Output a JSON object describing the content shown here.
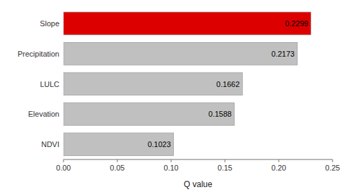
{
  "chart_data": {
    "type": "bar",
    "orientation": "horizontal",
    "categories": [
      "NDVI",
      "Elevation",
      "LULC",
      "Precipitation",
      "Slope"
    ],
    "values": [
      0.1023,
      0.1588,
      0.1662,
      0.2173,
      0.2299
    ],
    "colors": [
      "#c0c0c0",
      "#c0c0c0",
      "#c0c0c0",
      "#c0c0c0",
      "#dd0000"
    ],
    "data_labels": true,
    "xlabel": "Q value",
    "xlim": [
      0,
      0.25
    ],
    "xticks": [
      {
        "value": 0,
        "label": "0.00"
      },
      {
        "value": 0.05,
        "label": "0.05"
      },
      {
        "value": 0.1,
        "label": "0.10"
      },
      {
        "value": 0.15,
        "label": "0.15"
      },
      {
        "value": 0.2,
        "label": "0.20"
      },
      {
        "value": 0.25,
        "label": "0.25"
      }
    ],
    "grid": false
  }
}
